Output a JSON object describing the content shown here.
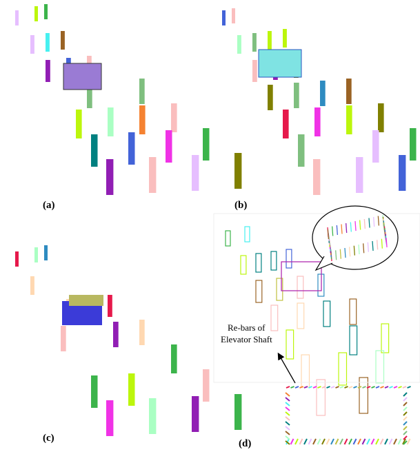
{
  "panels": [
    {
      "label": "(a)"
    },
    {
      "label": "(b)"
    },
    {
      "label": "(c)"
    },
    {
      "label": "(d)"
    }
  ],
  "annotation": {
    "lines": [
      "Re-bars of",
      "Elevator Shaft"
    ]
  }
}
